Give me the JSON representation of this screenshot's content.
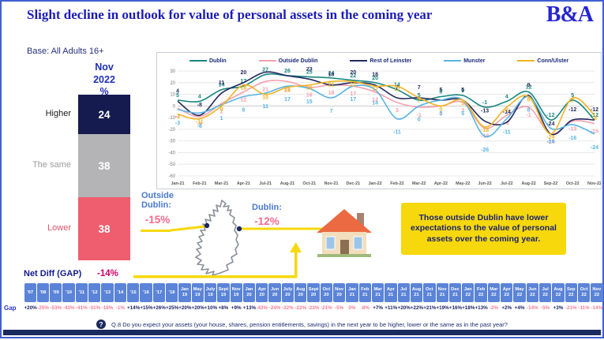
{
  "slide": {
    "title": "Slight decline in outlook for value of personal assets in the coming year",
    "logo_text": "B&A",
    "base_note": "Base: All Adults 16+",
    "question_icon_glyph": "?",
    "question": "Q.8 Do you expect your assets (your house, shares, pension entitlements, savings) in the next year to be higher, lower or the same as in the past year?"
  },
  "bar_panel": {
    "period_lines": [
      "Nov",
      "2022",
      "%"
    ],
    "segments": [
      {
        "label": "Higher",
        "value": 24,
        "color": "#151b4e",
        "label_color": "#1a1a1a"
      },
      {
        "label": "The same",
        "value": 38,
        "color": "#b4b4b6",
        "label_color": "#9b9b9b"
      },
      {
        "label": "Lower",
        "value": 38,
        "color": "#ee5e6e",
        "label_color": "#e0556b"
      }
    ],
    "net_diff_label": "Net Diff (GAP)",
    "net_diff_value": "-14%"
  },
  "map_section": {
    "outside_dublin_label_lines": [
      "Outside",
      "Dublin:"
    ],
    "outside_dublin_value": "-15%",
    "dublin_label": "Dublin:",
    "dublin_value": "-12%"
  },
  "insight_box": {
    "text": "Those outside Dublin have lower expectations to the value of personal assets over the coming year."
  },
  "chart_data": {
    "type": "line",
    "title": "",
    "xlabel": "",
    "ylabel": "",
    "ylim": [
      -60,
      30
    ],
    "yticks": [
      30,
      20,
      10,
      0,
      -10,
      -20,
      -30,
      -40,
      -50,
      -60
    ],
    "grid": true,
    "legend_position": "top",
    "categories": [
      "Jan-21",
      "Feb-21",
      "Mar-21",
      "Apr-21",
      "Jul-21",
      "Aug-21",
      "Oct-21",
      "Nov-21",
      "Dec-21",
      "Jan-22",
      "Feb-22",
      "Mar-22",
      "Apr-22",
      "May-22",
      "Jun-22",
      "Jul-22",
      "Aug-22",
      "Sep-22",
      "Oct-22",
      "Nov-22"
    ],
    "series": [
      {
        "name": "Dublin",
        "color": "#17867f",
        "values": [
          5,
          4,
          14,
          17,
          27,
          26,
          25,
          24,
          22,
          20,
          14,
          5,
          8,
          9,
          -1,
          4,
          12,
          -12,
          5,
          -12
        ]
      },
      {
        "name": "Outside Dublin",
        "color": "#f4a0ae",
        "values": [
          -2,
          -9,
          2,
          12,
          21,
          21,
          16,
          18,
          17,
          12,
          3,
          -1,
          0,
          3,
          -19,
          -8,
          -1,
          -24,
          -13,
          -15
        ]
      },
      {
        "name": "Rest of Leinster",
        "color": "#232a60",
        "values": [
          4,
          -8,
          11,
          20,
          29,
          26,
          23,
          18,
          20,
          18,
          7,
          7,
          5,
          5,
          -13,
          -14,
          9,
          -24,
          -12,
          -12
        ]
      },
      {
        "name": "Munster",
        "color": "#58b4e4",
        "values": [
          -3,
          -6,
          1,
          8,
          11,
          17,
          15,
          7,
          17,
          14,
          -11,
          0,
          5,
          5,
          -26,
          -11,
          8,
          -19,
          -16,
          -24
        ]
      },
      {
        "name": "Conn/Ulster",
        "color": "#f0b323",
        "values": [
          -7,
          -11,
          0,
          18,
          10,
          16,
          18,
          21,
          21,
          17,
          17,
          7,
          0,
          5,
          -18,
          -1,
          8,
          -24,
          7,
          -8
        ]
      }
    ]
  },
  "gap_table": {
    "row_label": "Gap",
    "columns": [
      {
        "period": "'07",
        "value": "+20%"
      },
      {
        "period": "'08",
        "value": "-25%"
      },
      {
        "period": "'09",
        "value": "-53%"
      },
      {
        "period": "'10",
        "value": "-43%"
      },
      {
        "period": "'11",
        "value": "-41%"
      },
      {
        "period": "'12",
        "value": "-31%"
      },
      {
        "period": "'13",
        "value": "-18%"
      },
      {
        "period": "'14",
        "value": "-1%"
      },
      {
        "period": "'15",
        "value": "+14%"
      },
      {
        "period": "'16",
        "value": "+15%"
      },
      {
        "period": "'17",
        "value": "+26%"
      },
      {
        "period": "'18",
        "value": "+25%"
      },
      {
        "period": "Jan 19",
        "value": "+20%"
      },
      {
        "period": "May 19",
        "value": "+20%"
      },
      {
        "period": "July 19",
        "value": "+10%"
      },
      {
        "period": "Sept 19",
        "value": "+8%"
      },
      {
        "period": "Nov 19",
        "value": "+9%"
      },
      {
        "period": "Jan 20",
        "value": "+13%"
      },
      {
        "period": "Apr 20",
        "value": "-43%"
      },
      {
        "period": "Jun 20",
        "value": "-24%"
      },
      {
        "period": "July 20",
        "value": "-22%"
      },
      {
        "period": "Aug 20",
        "value": "-22%"
      },
      {
        "period": "Sept 20",
        "value": "-23%"
      },
      {
        "period": "Oct 20",
        "value": "-21%"
      },
      {
        "period": "Nov 20",
        "value": "-5%"
      },
      {
        "period": "Jan 21",
        "value": "0%"
      },
      {
        "period": "Feb 21",
        "value": "-8%"
      },
      {
        "period": "Mar 21",
        "value": "+7%"
      },
      {
        "period": "Apr 21",
        "value": "+11%"
      },
      {
        "period": "Jul 21",
        "value": "+20%"
      },
      {
        "period": "Aug 21",
        "value": "+22%"
      },
      {
        "period": "Oct 21",
        "value": "+21%"
      },
      {
        "period": "Nov 21",
        "value": "+19%"
      },
      {
        "period": "Dec 21",
        "value": "+16%"
      },
      {
        "period": "Jan 22",
        "value": "+18%"
      },
      {
        "period": "Feb 22",
        "value": "+13%"
      },
      {
        "period": "Mar 22",
        "value": "-2%"
      },
      {
        "period": "Apr 22",
        "value": "+2%"
      },
      {
        "period": "May 22",
        "value": "+4%"
      },
      {
        "period": "Jun 22",
        "value": "-14%"
      },
      {
        "period": "Jul 22",
        "value": "-5%"
      },
      {
        "period": "Aug 22",
        "value": "+3%"
      },
      {
        "period": "Sep 22",
        "value": "-21%"
      },
      {
        "period": "Oct 22",
        "value": "-11%"
      },
      {
        "period": "Nov 22",
        "value": "-14%"
      }
    ]
  }
}
